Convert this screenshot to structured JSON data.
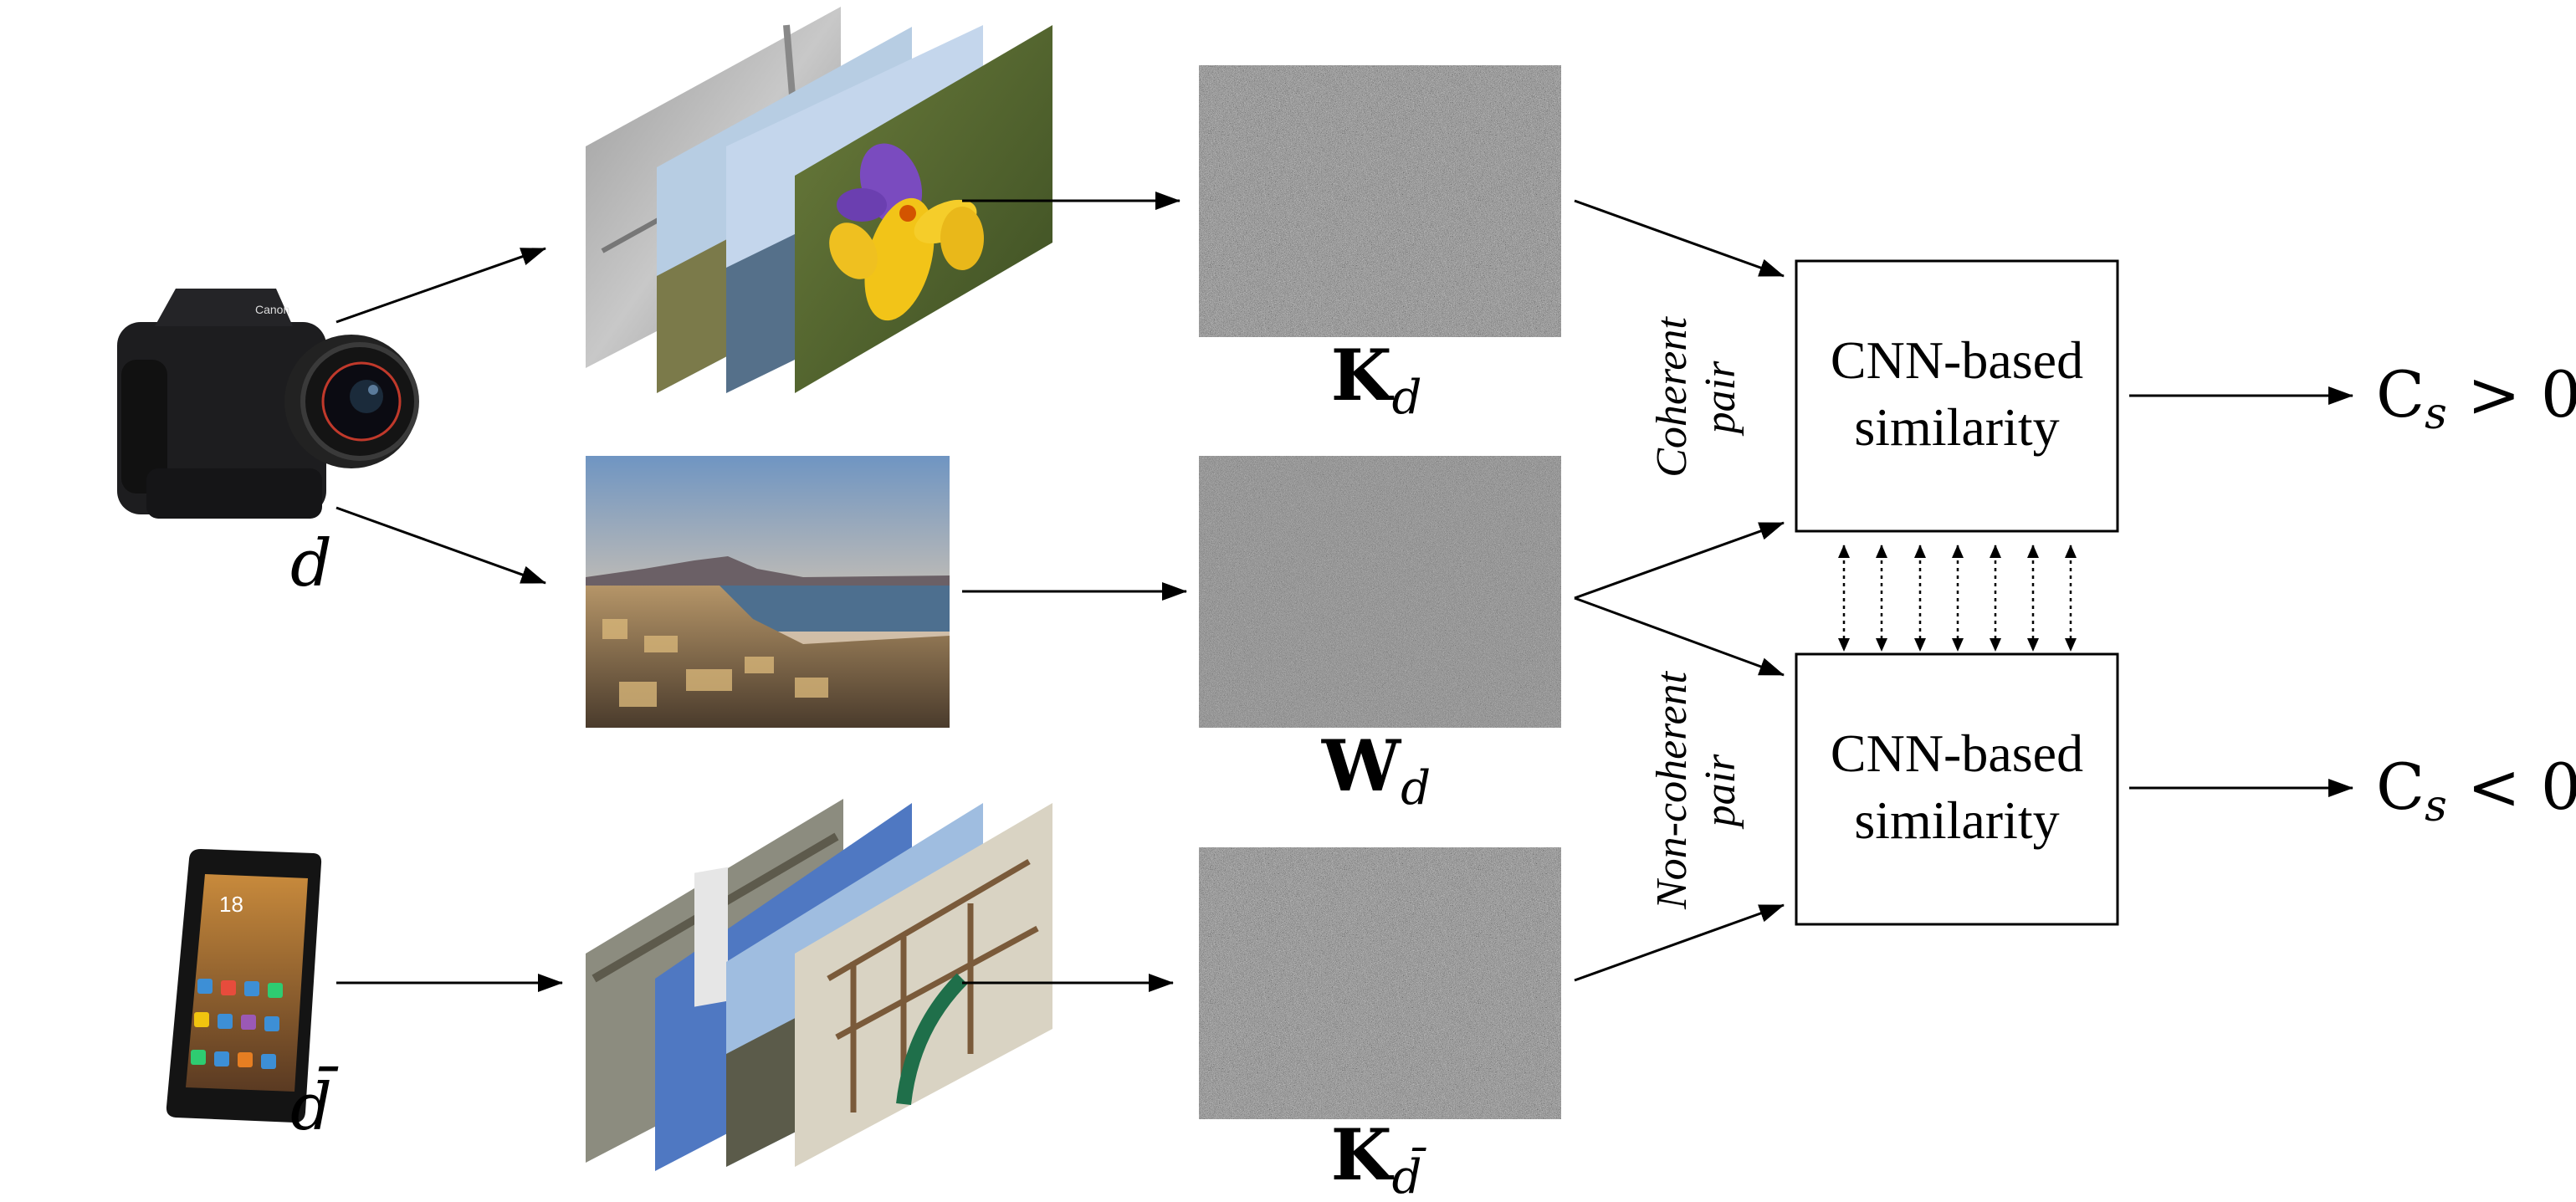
{
  "devices": {
    "camera": {
      "icon": "camera-icon",
      "label": "d"
    },
    "phone": {
      "icon": "smartphone-icon",
      "label": "d̄"
    }
  },
  "fingerprints": {
    "top": {
      "symbol": "K",
      "subscript": "d"
    },
    "middle": {
      "symbol": "W",
      "subscript": "d"
    },
    "bottom": {
      "symbol": "K",
      "subscript": "d̄"
    }
  },
  "blocks": {
    "top": {
      "line1": "CNN-based",
      "line2": "similarity"
    },
    "bottom": {
      "line1": "CNN-based",
      "line2": "similarity"
    }
  },
  "pairs": {
    "coherent": {
      "line1": "Coherent",
      "line2": "pair"
    },
    "non_coherent": {
      "line1": "Non-coherent",
      "line2": "pair"
    }
  },
  "outputs": {
    "top": {
      "symbol": "C",
      "subscript": "s",
      "relation": " > 0"
    },
    "bottom": {
      "symbol": "C",
      "subscript": "s",
      "relation": " < 0"
    }
  },
  "colors": {
    "stroke": "#000000",
    "noise_base": "#808080",
    "flower_petals": "#f2c418",
    "flower_purple": "#7a4bbf",
    "grass": "#4f6b2a",
    "sky": "#9fc0e6",
    "sea": "#4d6f8f",
    "city": "#a2865e"
  }
}
